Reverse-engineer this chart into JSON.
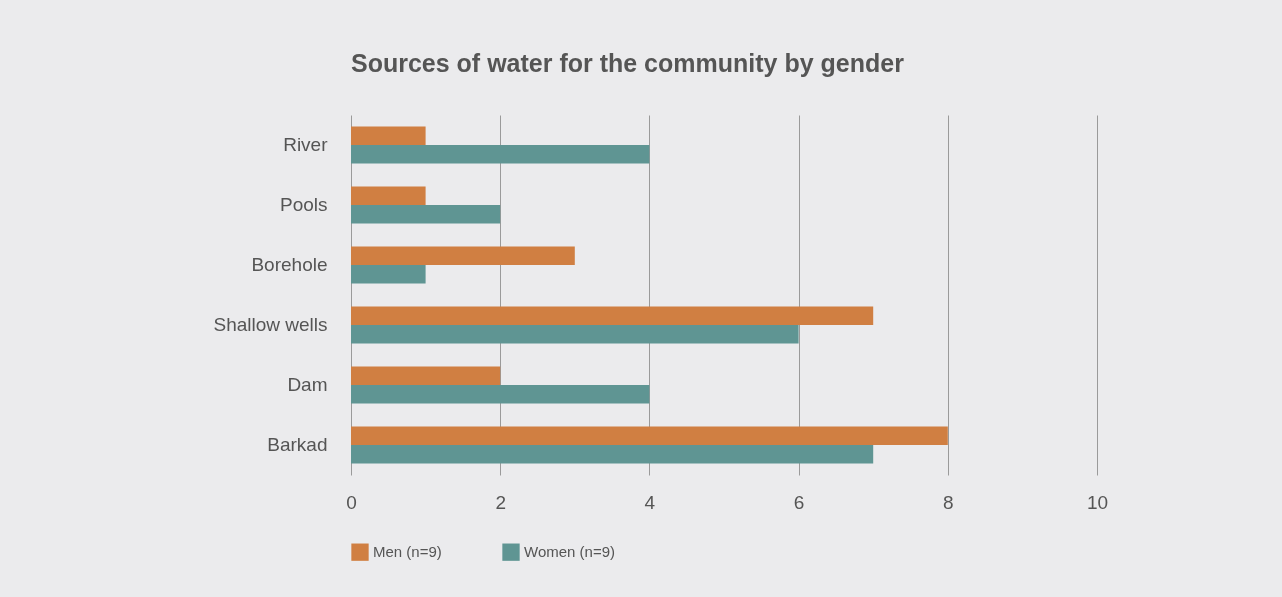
{
  "chart_data": {
    "type": "bar",
    "orientation": "horizontal",
    "title": "Sources of water for the community by gender",
    "categories": [
      "River",
      "Pools",
      "Borehole",
      "Shallow wells",
      "Dam",
      "Barkad"
    ],
    "series": [
      {
        "name": "Men (n=9)",
        "color": "#d07f42",
        "values": [
          1,
          1,
          3,
          7,
          2,
          8
        ]
      },
      {
        "name": "Women (n=9)",
        "color": "#5f9593",
        "values": [
          4,
          2,
          1,
          6,
          4,
          7
        ]
      }
    ],
    "xlim": [
      0,
      10
    ],
    "xticks": [
      0,
      2,
      4,
      6,
      8,
      10
    ],
    "grid": "x",
    "legend": "bottom left"
  }
}
